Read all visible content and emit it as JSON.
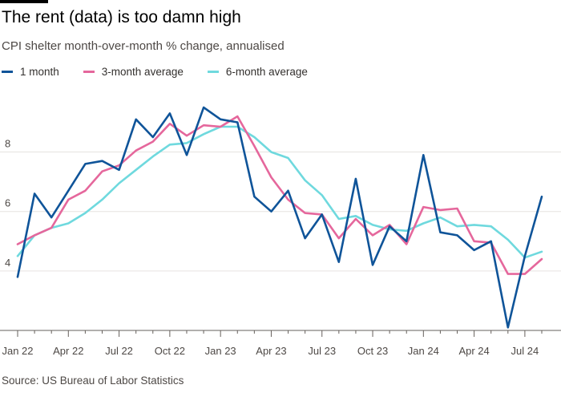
{
  "header": {
    "title": "The rent (data) is too damn high",
    "subtitle": "CPI shelter month-over-month % change, annualised"
  },
  "footer": {
    "source": "Source: US Bureau of Labor Statistics"
  },
  "chart_data": {
    "type": "line",
    "title": "The rent (data) is too damn high",
    "subtitle": "CPI shelter month-over-month % change, annualised",
    "xlabel": "",
    "ylabel": "",
    "x": [
      "2022-01",
      "2022-02",
      "2022-03",
      "2022-04",
      "2022-05",
      "2022-06",
      "2022-07",
      "2022-08",
      "2022-09",
      "2022-10",
      "2022-11",
      "2022-12",
      "2023-01",
      "2023-02",
      "2023-03",
      "2023-04",
      "2023-05",
      "2023-06",
      "2023-07",
      "2023-08",
      "2023-09",
      "2023-10",
      "2023-11",
      "2023-12",
      "2024-01",
      "2024-02",
      "2024-03",
      "2024-04",
      "2024-05",
      "2024-06",
      "2024-07",
      "2024-08"
    ],
    "x_ticks": [
      {
        "x": "2022-01",
        "label": "Jan 22"
      },
      {
        "x": "2022-04",
        "label": "Apr 22"
      },
      {
        "x": "2022-07",
        "label": "Jul 22"
      },
      {
        "x": "2022-10",
        "label": "Oct 22"
      },
      {
        "x": "2023-01",
        "label": "Jan 23"
      },
      {
        "x": "2023-04",
        "label": "Apr 23"
      },
      {
        "x": "2023-07",
        "label": "Jul 23"
      },
      {
        "x": "2023-10",
        "label": "Oct 23"
      },
      {
        "x": "2024-01",
        "label": "Jan 24"
      },
      {
        "x": "2024-04",
        "label": "Apr 24"
      },
      {
        "x": "2024-07",
        "label": "Jul 24"
      }
    ],
    "y_ticks": [
      4,
      6,
      8
    ],
    "ylim": [
      2,
      10.2
    ],
    "grid": true,
    "legend_position": "top-left",
    "series": [
      {
        "name": "1 month",
        "color": "#0f5499",
        "values": [
          3.8,
          6.6,
          5.8,
          6.7,
          7.6,
          7.7,
          7.4,
          9.1,
          8.5,
          9.3,
          7.9,
          9.5,
          9.1,
          9.0,
          6.5,
          6.0,
          6.7,
          5.1,
          5.9,
          4.3,
          7.1,
          4.2,
          5.5,
          5.0,
          7.9,
          5.3,
          5.2,
          4.7,
          5.0,
          2.1,
          4.5,
          6.5
        ]
      },
      {
        "name": "3-month average",
        "color": "#e5679c",
        "values": [
          4.9,
          5.2,
          5.45,
          6.4,
          6.7,
          7.35,
          7.55,
          8.05,
          8.35,
          8.95,
          8.55,
          8.9,
          8.85,
          9.2,
          8.2,
          7.15,
          6.4,
          5.95,
          5.9,
          5.1,
          5.75,
          5.2,
          5.55,
          4.9,
          6.15,
          6.05,
          6.1,
          5.0,
          4.95,
          3.9,
          3.9,
          4.4
        ]
      },
      {
        "name": "6-month average",
        "color": "#6fd9de",
        "values": [
          4.5,
          5.2,
          5.45,
          5.6,
          5.95,
          6.4,
          6.95,
          7.4,
          7.85,
          8.25,
          8.3,
          8.6,
          8.85,
          8.85,
          8.5,
          8.0,
          7.8,
          7.05,
          6.55,
          5.75,
          5.85,
          5.55,
          5.4,
          5.35,
          5.6,
          5.8,
          5.5,
          5.55,
          5.5,
          5.05,
          4.45,
          4.65
        ]
      }
    ]
  }
}
